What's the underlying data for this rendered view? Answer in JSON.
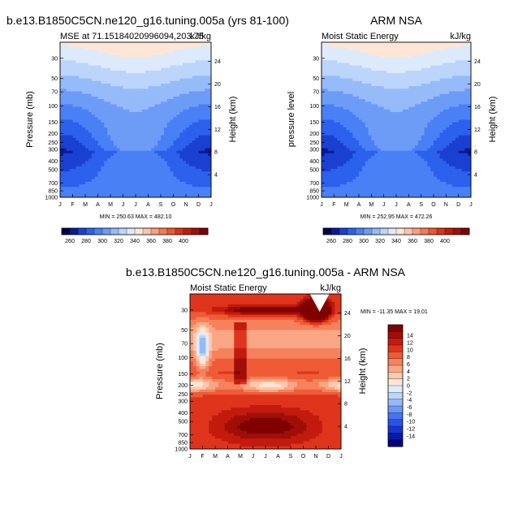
{
  "colors": {
    "abs_palette": [
      "#00004d",
      "#0d1a96",
      "#1a40d2",
      "#2b61ec",
      "#4a80f5",
      "#6d9cf7",
      "#96bbf9",
      "#bcd5fb",
      "#ddeafc",
      "#fde6d6",
      "#fcc5aa",
      "#fa9f7c",
      "#f57a54",
      "#ee5632",
      "#dc3219",
      "#c01a0d",
      "#a00f08",
      "#800000"
    ],
    "diff_palette": [
      "#00007a",
      "#0a1aa8",
      "#1535d0",
      "#2654e6",
      "#4675ef",
      "#6d97f4",
      "#97b9f8",
      "#bed5fb",
      "#e0ebfc",
      "#fde6d6",
      "#fbc9ae",
      "#f9a785",
      "#f5825c",
      "#ef5b37",
      "#df351c",
      "#c21b0d",
      "#a00e08",
      "#800000"
    ]
  },
  "figure_title_diff": "b.e13.B1850C5CN.ne120_g16.tuning.005a - ARM NSA",
  "chart_data": [
    {
      "id": "model",
      "type": "heatmap",
      "title": "b.e13.B1850C5CN.ne120_g16.tuning.005a (yrs 81-100)",
      "subtitle_left": "MSE at 71.15184020996094,203.75",
      "units": "kJ/kg",
      "ylabel": "Pressure (mb)",
      "ylabel_right": "Height (km)",
      "x_tick_labels": [
        "J",
        "F",
        "M",
        "A",
        "M",
        "J",
        "J",
        "A",
        "S",
        "O",
        "N",
        "D",
        "J"
      ],
      "pressure_ticks": [
        30,
        50,
        70,
        100,
        150,
        200,
        250,
        300,
        400,
        500,
        700,
        850,
        1000
      ],
      "pressure_tick_labels": [
        "30",
        "50",
        "70",
        "100",
        "150",
        "200",
        "250",
        "300",
        "400",
        "500",
        "700",
        "850",
        "1000"
      ],
      "height_ticks": [
        4,
        8,
        12,
        16,
        20,
        24
      ],
      "height_tick_labels": [
        "4",
        "8",
        "12",
        "16",
        "20",
        "24"
      ],
      "ylim": [
        1000,
        20
      ],
      "stats": "MIN = 250.63  MAX = 482.10",
      "min": 250.63,
      "max": 482.1,
      "levels": [
        260,
        270,
        280,
        290,
        300,
        310,
        320,
        330,
        340,
        350,
        360,
        370,
        380,
        390,
        400
      ],
      "colorbar_labels": [
        "260",
        "280",
        "300",
        "320",
        "340",
        "360",
        "380",
        "400"
      ],
      "colorbar_label_values": [
        260,
        280,
        300,
        320,
        340,
        360,
        380,
        400
      ]
    },
    {
      "id": "obs",
      "type": "heatmap",
      "title": "ARM NSA",
      "subtitle_left": "Moist Static Energy",
      "units": "kJ/kg",
      "ylabel": "pressure level",
      "ylabel_right": "Height (km)",
      "x_tick_labels": [
        "J",
        "F",
        "M",
        "A",
        "M",
        "J",
        "J",
        "A",
        "S",
        "O",
        "N",
        "D",
        "J"
      ],
      "pressure_ticks": [
        30,
        50,
        70,
        100,
        150,
        200,
        250,
        300,
        400,
        500,
        700,
        850,
        1000
      ],
      "pressure_tick_labels": [
        "30",
        "50",
        "70",
        "100",
        "150",
        "200",
        "250",
        "300",
        "400",
        "500",
        "700",
        "850",
        "1000"
      ],
      "height_ticks": [
        4,
        8,
        12,
        16,
        20,
        24
      ],
      "height_tick_labels": [
        "4",
        "8",
        "12",
        "16",
        "20",
        "24"
      ],
      "ylim": [
        1000,
        20
      ],
      "stats": "MIN = 252.95  MAX = 472.26",
      "min": 252.95,
      "max": 472.26,
      "levels": [
        260,
        270,
        280,
        290,
        300,
        310,
        320,
        330,
        340,
        350,
        360,
        370,
        380,
        390,
        400
      ],
      "colorbar_labels": [
        "260",
        "280",
        "300",
        "320",
        "340",
        "360",
        "380",
        "400"
      ],
      "colorbar_label_values": [
        260,
        280,
        300,
        320,
        340,
        360,
        380,
        400
      ]
    },
    {
      "id": "diff",
      "type": "heatmap",
      "title": "b.e13.B1850C5CN.ne120_g16.tuning.005a - ARM NSA",
      "subtitle_left": "Moist Static Energy",
      "units": "kJ/kg",
      "ylabel": "Pressure (mb)",
      "ylabel_right": "Height (km)",
      "x_tick_labels": [
        "J",
        "F",
        "M",
        "A",
        "M",
        "J",
        "J",
        "A",
        "S",
        "O",
        "N",
        "D",
        "J"
      ],
      "pressure_ticks": [
        30,
        50,
        70,
        100,
        150,
        200,
        250,
        300,
        400,
        500,
        700,
        850,
        1000
      ],
      "pressure_tick_labels": [
        "30",
        "50",
        "70",
        "100",
        "150",
        "200",
        "250",
        "300",
        "400",
        "500",
        "700",
        "850",
        "1000"
      ],
      "height_ticks": [
        4,
        8,
        12,
        16,
        20,
        24
      ],
      "height_tick_labels": [
        "4",
        "8",
        "12",
        "16",
        "20",
        "24"
      ],
      "ylim": [
        1000,
        20
      ],
      "stats": "MIN = -11.35  MAX =  19.01",
      "min": -11.35,
      "max": 19.01,
      "levels": [
        -15,
        -14,
        -13,
        -12,
        -11,
        -10,
        -9,
        -8,
        -7,
        -6,
        -5,
        -4,
        -3,
        -2,
        -1,
        0,
        1,
        2,
        3,
        4,
        5,
        6,
        7,
        8,
        9,
        10,
        11,
        12,
        13,
        14,
        15
      ],
      "colorbar_labels": [
        "14",
        "12",
        "10",
        "8",
        "6",
        "4",
        "2",
        "0",
        "-2",
        "-4",
        "-6",
        "-8",
        "-10",
        "-12",
        "-14"
      ],
      "colorbar_label_values": [
        14,
        12,
        10,
        8,
        6,
        4,
        2,
        0,
        -2,
        -4,
        -6,
        -8,
        -10,
        -12,
        -14
      ]
    }
  ]
}
